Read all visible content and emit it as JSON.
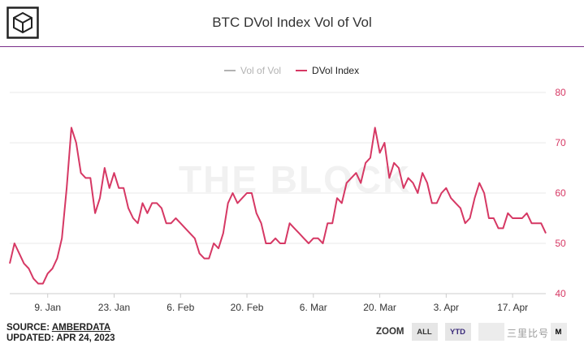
{
  "header": {
    "title": "BTC DVol Index Vol of Vol"
  },
  "watermark": "THE BLOCK",
  "legend": [
    {
      "label": "Vol of Vol",
      "color": "#b3b3b3"
    },
    {
      "label": "DVol Index",
      "color": "#d63864"
    }
  ],
  "footer": {
    "source_prefix": "SOURCE: ",
    "source_name": "AMBERDATA",
    "updated": "UPDATED: APR 24, 2023"
  },
  "zoom": {
    "label": "ZOOM",
    "buttons": [
      "ALL",
      "YTD"
    ],
    "selected": "YTD",
    "edge_text": "M"
  },
  "corner_text": "三里比号",
  "chart_data": {
    "type": "line",
    "title": "BTC DVol Index Vol of Vol",
    "x_tick_labels": [
      "9. Jan",
      "23. Jan",
      "6. Feb",
      "20. Feb",
      "6. Mar",
      "20. Mar",
      "3. Apr",
      "17. Apr"
    ],
    "x_tick_days": [
      8,
      22,
      36,
      50,
      64,
      78,
      92,
      106
    ],
    "xlim": [
      0,
      113
    ],
    "ylim": [
      40,
      80
    ],
    "y_ticks": [
      40,
      50,
      60,
      70,
      80
    ],
    "series": [
      {
        "name": "DVol Index",
        "color": "#d63864",
        "x": [
          0,
          1,
          2,
          3,
          4,
          5,
          6,
          7,
          8,
          9,
          10,
          11,
          12,
          13,
          14,
          15,
          16,
          17,
          18,
          19,
          20,
          21,
          22,
          23,
          24,
          25,
          26,
          27,
          28,
          29,
          30,
          31,
          32,
          33,
          34,
          35,
          36,
          37,
          38,
          39,
          40,
          41,
          42,
          43,
          44,
          45,
          46,
          47,
          48,
          49,
          50,
          51,
          52,
          53,
          54,
          55,
          56,
          57,
          58,
          59,
          60,
          61,
          62,
          63,
          64,
          65,
          66,
          67,
          68,
          69,
          70,
          71,
          72,
          73,
          74,
          75,
          76,
          77,
          78,
          79,
          80,
          81,
          82,
          83,
          84,
          85,
          86,
          87,
          88,
          89,
          90,
          91,
          92,
          93,
          94,
          95,
          96,
          97,
          98,
          99,
          100,
          101,
          102,
          103,
          104,
          105,
          106,
          107,
          108,
          109,
          110,
          111,
          112,
          113
        ],
        "values": [
          46,
          50,
          48,
          46,
          45,
          43,
          42,
          42,
          44,
          45,
          47,
          51,
          61,
          73,
          70,
          64,
          63,
          63,
          56,
          59,
          65,
          61,
          64,
          61,
          61,
          57,
          55,
          54,
          58,
          56,
          58,
          58,
          57,
          54,
          54,
          55,
          54,
          53,
          52,
          51,
          48,
          47,
          47,
          50,
          49,
          52,
          58,
          60,
          58,
          59,
          60,
          60,
          56,
          54,
          50,
          50,
          51,
          50,
          50,
          54,
          53,
          52,
          51,
          50,
          51,
          51,
          50,
          54,
          54,
          59,
          58,
          62,
          63,
          64,
          62,
          66,
          67,
          73,
          68,
          70,
          63,
          66,
          65,
          61,
          63,
          62,
          60,
          64,
          62,
          58,
          58,
          60,
          61,
          59,
          58,
          57,
          54,
          55,
          59,
          62,
          60,
          55,
          55,
          53,
          53,
          56,
          55,
          55,
          55,
          56,
          54,
          54,
          54,
          52
        ]
      }
    ]
  }
}
